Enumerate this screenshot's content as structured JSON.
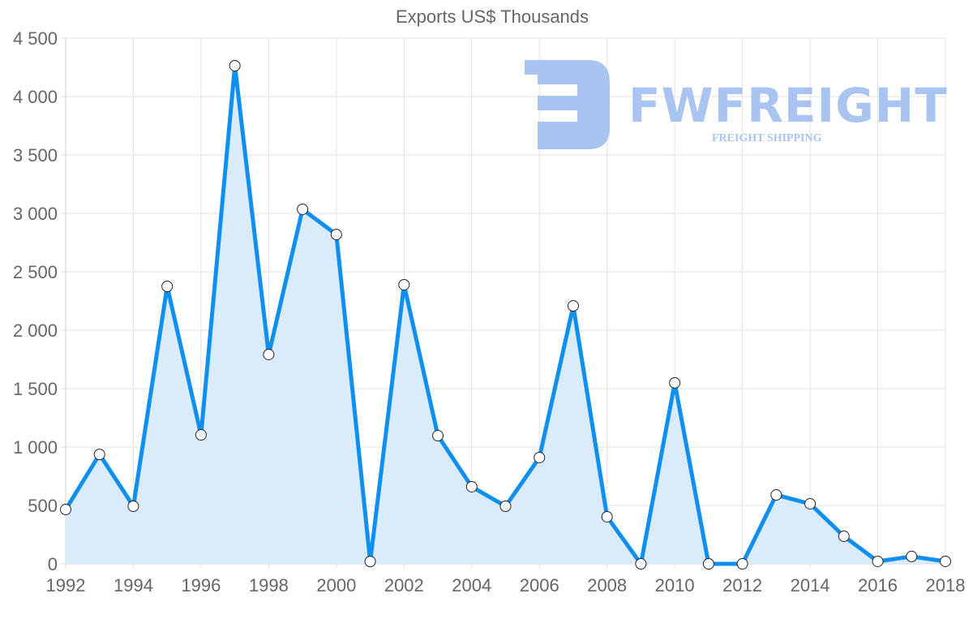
{
  "chart_data": {
    "type": "area",
    "title": "Exports US$ Thousands",
    "xlabel": "",
    "ylabel": "",
    "x": [
      1992,
      1993,
      1994,
      1995,
      1996,
      1997,
      1998,
      1999,
      2000,
      2001,
      2002,
      2003,
      2004,
      2005,
      2006,
      2007,
      2008,
      2009,
      2010,
      2011,
      2012,
      2013,
      2014,
      2015,
      2016,
      2017,
      2018
    ],
    "series": [
      {
        "name": "Exports US$ Thousands",
        "values": [
          465,
          937,
          493,
          2375,
          1104,
          4264,
          1792,
          3035,
          2819,
          20,
          2389,
          1097,
          660,
          493,
          910,
          2208,
          403,
          0,
          1549,
          0,
          0,
          590,
          514,
          236,
          21,
          63,
          21
        ]
      }
    ],
    "ylim": [
      0,
      4500
    ],
    "yticks": [
      "0",
      "500",
      "1 000",
      "1 500",
      "2 000",
      "2 500",
      "3 000",
      "3 500",
      "4 000",
      "4 500"
    ],
    "xticks": [
      "1992",
      "1994",
      "1996",
      "1998",
      "2000",
      "2002",
      "2004",
      "2006",
      "2008",
      "2010",
      "2012",
      "2014",
      "2016",
      "2018"
    ],
    "grid": true,
    "legend": "none",
    "line_color": "#0f8ff0",
    "fill_color": "#d8ebfc"
  },
  "watermark": {
    "brand": "FWFREIGHT",
    "tagline": "FREIGHT SHIPPING"
  }
}
